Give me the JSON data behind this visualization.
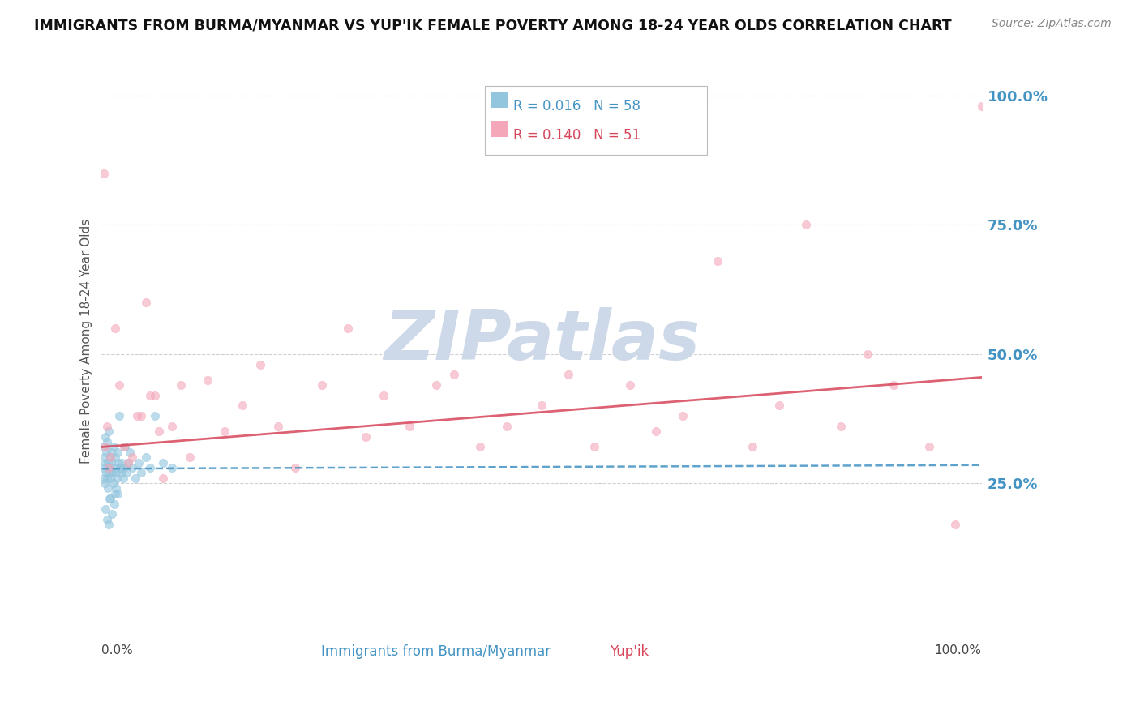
{
  "title": "IMMIGRANTS FROM BURMA/MYANMAR VS YUP'IK FEMALE POVERTY AMONG 18-24 YEAR OLDS CORRELATION CHART",
  "source": "Source: ZipAtlas.com",
  "ylabel": "Female Poverty Among 18-24 Year Olds",
  "legend_r1": "R = 0.016",
  "legend_n1": "N = 58",
  "legend_r2": "R = 0.140",
  "legend_n2": "N = 51",
  "blue_color": "#92c5de",
  "pink_color": "#f4a7b9",
  "blue_line_color": "#4393c3",
  "pink_line_color": "#d6455a",
  "watermark_color": "#cdd8e8",
  "background_color": "#ffffff",
  "grid_color": "#d0d0d0",
  "right_tick_color": "#4393c3",
  "bottom_label_color_blue": "#4393c3",
  "bottom_label_color_pink": "#d6455a",
  "bottom_label_color_black": "#444444",
  "blue_x": [
    0.001,
    0.002,
    0.002,
    0.003,
    0.003,
    0.004,
    0.004,
    0.005,
    0.005,
    0.006,
    0.006,
    0.007,
    0.007,
    0.008,
    0.008,
    0.009,
    0.009,
    0.01,
    0.01,
    0.011,
    0.011,
    0.012,
    0.013,
    0.013,
    0.014,
    0.015,
    0.015,
    0.016,
    0.017,
    0.018,
    0.019,
    0.02,
    0.021,
    0.022,
    0.023,
    0.024,
    0.025,
    0.026,
    0.028,
    0.03,
    0.032,
    0.035,
    0.038,
    0.042,
    0.045,
    0.05,
    0.055,
    0.06,
    0.07,
    0.08,
    0.004,
    0.006,
    0.008,
    0.01,
    0.012,
    0.014,
    0.016,
    0.018
  ],
  "blue_y": [
    0.28,
    0.32,
    0.26,
    0.3,
    0.25,
    0.29,
    0.34,
    0.27,
    0.31,
    0.26,
    0.33,
    0.29,
    0.24,
    0.28,
    0.35,
    0.27,
    0.22,
    0.3,
    0.26,
    0.29,
    0.31,
    0.27,
    0.25,
    0.32,
    0.28,
    0.3,
    0.23,
    0.27,
    0.26,
    0.31,
    0.29,
    0.38,
    0.28,
    0.27,
    0.29,
    0.26,
    0.28,
    0.32,
    0.27,
    0.29,
    0.31,
    0.28,
    0.26,
    0.29,
    0.27,
    0.3,
    0.28,
    0.38,
    0.29,
    0.28,
    0.2,
    0.18,
    0.17,
    0.22,
    0.19,
    0.21,
    0.24,
    0.23
  ],
  "pink_x": [
    0.002,
    0.004,
    0.006,
    0.008,
    0.01,
    0.015,
    0.02,
    0.025,
    0.03,
    0.04,
    0.05,
    0.06,
    0.07,
    0.08,
    0.09,
    0.1,
    0.12,
    0.14,
    0.16,
    0.18,
    0.2,
    0.22,
    0.25,
    0.28,
    0.3,
    0.32,
    0.35,
    0.38,
    0.4,
    0.43,
    0.46,
    0.5,
    0.53,
    0.56,
    0.6,
    0.63,
    0.66,
    0.7,
    0.74,
    0.77,
    0.8,
    0.84,
    0.87,
    0.9,
    0.94,
    0.97,
    1.0,
    0.035,
    0.045,
    0.055,
    0.065
  ],
  "pink_y": [
    0.85,
    0.32,
    0.36,
    0.28,
    0.3,
    0.55,
    0.44,
    0.32,
    0.29,
    0.38,
    0.6,
    0.42,
    0.26,
    0.36,
    0.44,
    0.3,
    0.45,
    0.35,
    0.4,
    0.48,
    0.36,
    0.28,
    0.44,
    0.55,
    0.34,
    0.42,
    0.36,
    0.44,
    0.46,
    0.32,
    0.36,
    0.4,
    0.46,
    0.32,
    0.44,
    0.35,
    0.38,
    0.68,
    0.32,
    0.4,
    0.75,
    0.36,
    0.5,
    0.44,
    0.32,
    0.17,
    0.98,
    0.3,
    0.38,
    0.42,
    0.35
  ],
  "blue_trend": [
    0.0,
    1.0,
    0.278,
    0.285
  ],
  "pink_trend": [
    0.0,
    1.0,
    0.32,
    0.455
  ],
  "xlim": [
    0.0,
    1.0
  ],
  "ylim": [
    0.0,
    1.05
  ],
  "yticks": [
    0.0,
    0.25,
    0.5,
    0.75,
    1.0
  ],
  "ytick_labels_right": [
    "",
    "25.0%",
    "50.0%",
    "75.0%",
    "100.0%"
  ]
}
